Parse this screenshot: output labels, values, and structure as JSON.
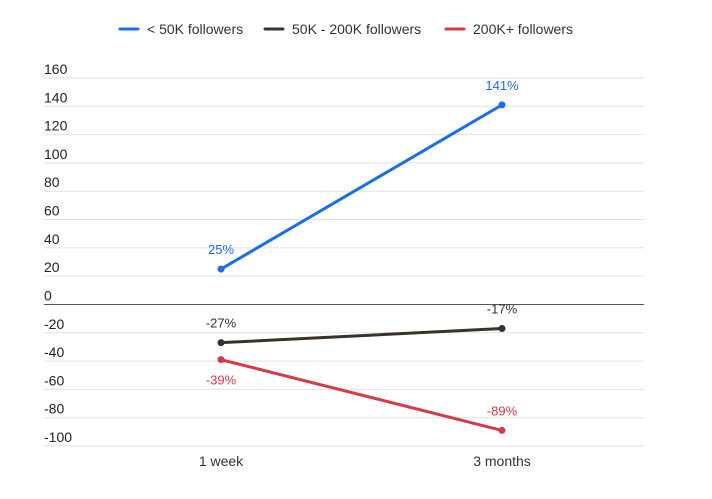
{
  "chart_data": {
    "type": "line",
    "title": "",
    "xlabel": "",
    "ylabel": "",
    "categories": [
      "1 week",
      "3 months"
    ],
    "ylim": [
      -100,
      160
    ],
    "yticks": [
      160,
      140,
      120,
      100,
      80,
      60,
      40,
      20,
      0,
      -20,
      -40,
      -60,
      -80,
      -100
    ],
    "grid": true,
    "legend_position": "top",
    "series": [
      {
        "name": "< 50K followers",
        "color": "#1a6fe6",
        "values": [
          25,
          141
        ],
        "labels": [
          "25%",
          "141%"
        ]
      },
      {
        "name": "50K - 200K followers",
        "color": "#3a3128",
        "values": [
          -27,
          -17
        ],
        "labels": [
          "-27%",
          "-17%"
        ]
      },
      {
        "name": "200K+ followers",
        "color": "#d63a4a",
        "values": [
          -39,
          -89
        ],
        "labels": [
          "-39%",
          "-89%"
        ]
      }
    ]
  }
}
